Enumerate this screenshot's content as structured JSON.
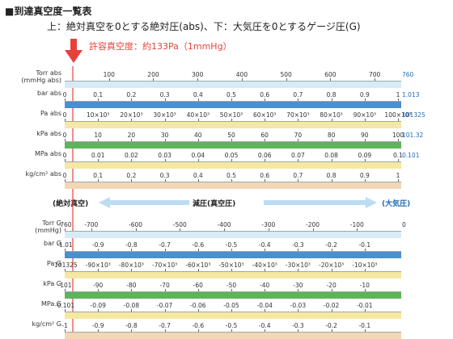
{
  "header": {
    "title": "■到達真空度一覧表",
    "subtitle": "上：絶対真空を0とする絶対圧(abs)、下：大気圧を0とするゲージ圧(G)",
    "allowable": "許容真空度：約133Pa（1mmHg）"
  },
  "middle": {
    "left": "(絶対真空)",
    "center": "減圧(真空圧)",
    "right": "(大気圧)"
  },
  "colors": {
    "blue": "#4a8fd0",
    "green": "#5fb35a",
    "cream": "#f6e7a2",
    "peach": "#f3d7b5",
    "lightblue": "#d7ebf7",
    "red": "#e8413c",
    "accent": "#1f6bb3"
  },
  "chart_data": [
    {
      "type": "table",
      "section": "abs",
      "rows": [
        {
          "label": "Torr abs\n(mmHg abs)",
          "end_label": "760",
          "ticks": [
            "100",
            "200",
            "300",
            "400",
            "500",
            "600",
            "700"
          ]
        },
        {
          "label": "bar abs",
          "end_label": "1.013",
          "ticks": [
            "0",
            "0.1",
            "0.2",
            "0.3",
            "0.4",
            "0.5",
            "0.6",
            "0.7",
            "0.8",
            "0.9",
            "1"
          ]
        },
        {
          "label": "Pa abs",
          "end_label": "101325",
          "ticks": [
            "0",
            "10×10³",
            "20×10³",
            "30×10³",
            "40×10³",
            "50×10³",
            "60×10³",
            "70×10³",
            "80×10³",
            "90×10³",
            "100×10³"
          ]
        },
        {
          "label": "kPa abs",
          "end_label": "101.32",
          "ticks": [
            "0",
            "10",
            "20",
            "30",
            "40",
            "50",
            "60",
            "70",
            "80",
            "90",
            "100"
          ]
        },
        {
          "label": "MPa abs",
          "end_label": "0.101",
          "ticks": [
            "0",
            "0.01",
            "0.02",
            "0.03",
            "0.04",
            "0.05",
            "0.06",
            "0.07",
            "0.08",
            "0.09",
            "0.1"
          ]
        },
        {
          "label": "kg/cm² abs",
          "end_label": "",
          "ticks": [
            "0",
            "0.1",
            "0.2",
            "0.3",
            "0.4",
            "0.5",
            "0.6",
            "0.7",
            "0.8",
            "0.9",
            "1"
          ]
        }
      ]
    },
    {
      "type": "table",
      "section": "gauge",
      "rows": [
        {
          "label": "Torr G\n(mmHg)",
          "end_label": "0",
          "ticks": [
            "-760",
            "-700",
            "-600",
            "-500",
            "-400",
            "-300",
            "-200",
            "-100"
          ]
        },
        {
          "label": "bar G",
          "end_label": "",
          "ticks": [
            "-1.01",
            "-0.9",
            "-0.8",
            "-0.7",
            "-0.6",
            "-0.5",
            "-0.4",
            "-0.3",
            "-0.2",
            "-0.1"
          ]
        },
        {
          "label": "Pa G",
          "end_label": "",
          "ticks": [
            "-101325",
            "-90×10³",
            "-80×10³",
            "-70×10³",
            "-60×10³",
            "-50×10³",
            "-40×10³",
            "-30×10³",
            "-20×10³",
            "-10×10³"
          ]
        },
        {
          "label": "kPa G",
          "end_label": "",
          "ticks": [
            "-101",
            "-90",
            "-80",
            "-70",
            "-60",
            "-50",
            "-40",
            "-30",
            "-20",
            "-10"
          ]
        },
        {
          "label": "MPa G",
          "end_label": "",
          "ticks": [
            "-0.101",
            "-0.09",
            "-0.08",
            "-0.07",
            "-0.06",
            "-0.05",
            "-0.04",
            "-0.03",
            "-0.02",
            "-0.01"
          ]
        },
        {
          "label": "kg/cm² G",
          "end_label": "",
          "ticks": [
            "-1",
            "-0.9",
            "-0.8",
            "-0.7",
            "-0.6",
            "-0.5",
            "-0.4",
            "-0.3",
            "-0.2",
            "-0.1"
          ]
        }
      ]
    }
  ]
}
